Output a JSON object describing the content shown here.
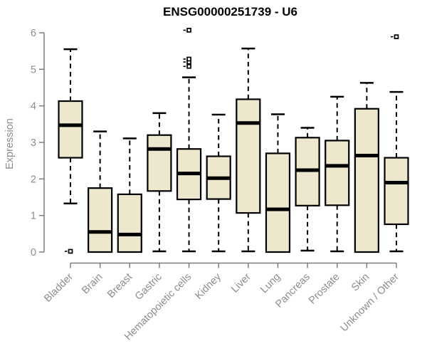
{
  "chart_data": {
    "type": "boxplot",
    "title": "ENSG00000251739 - U6",
    "ylabel": "Expression",
    "xlabel": "",
    "ylim": [
      0,
      6
    ],
    "yticks": [
      0,
      1,
      2,
      3,
      4,
      5,
      6
    ],
    "grid": false,
    "legend": "none",
    "categories": [
      "Bladder",
      "Brain",
      "Breast",
      "Gastric",
      "Hematopoietic cells",
      "Kidney",
      "Liver",
      "Lung",
      "Pancreas",
      "Prostate",
      "Skin",
      "Unknown / Other"
    ],
    "series": [
      {
        "name": "Bladder",
        "whisker_low": 1.33,
        "q1": 2.58,
        "median": 3.47,
        "q3": 4.13,
        "whisker_high": 5.55,
        "outliers": [
          0.02
        ]
      },
      {
        "name": "Brain",
        "whisker_low": 0,
        "q1": 0,
        "median": 0.55,
        "q3": 1.75,
        "whisker_high": 3.3,
        "outliers": []
      },
      {
        "name": "Breast",
        "whisker_low": 0,
        "q1": 0,
        "median": 0.48,
        "q3": 1.58,
        "whisker_high": 3.11,
        "outliers": []
      },
      {
        "name": "Gastric",
        "whisker_low": 0.02,
        "q1": 1.67,
        "median": 2.82,
        "q3": 3.2,
        "whisker_high": 3.8,
        "outliers": []
      },
      {
        "name": "Hematopoietic cells",
        "whisker_low": 0.02,
        "q1": 1.44,
        "median": 2.15,
        "q3": 2.82,
        "whisker_high": 4.78,
        "outliers": [
          5.08,
          5.2,
          5.28,
          6.07
        ]
      },
      {
        "name": "Kidney",
        "whisker_low": 0.02,
        "q1": 1.45,
        "median": 2.02,
        "q3": 2.62,
        "whisker_high": 3.76,
        "outliers": []
      },
      {
        "name": "Liver",
        "whisker_low": 0.02,
        "q1": 1.07,
        "median": 3.53,
        "q3": 4.18,
        "whisker_high": 5.57,
        "outliers": []
      },
      {
        "name": "Lung",
        "whisker_low": 0,
        "q1": 0,
        "median": 1.17,
        "q3": 2.7,
        "whisker_high": 3.77,
        "outliers": []
      },
      {
        "name": "Pancreas",
        "whisker_low": 0.04,
        "q1": 1.27,
        "median": 2.24,
        "q3": 3.13,
        "whisker_high": 3.4,
        "outliers": []
      },
      {
        "name": "Prostate",
        "whisker_low": 0.02,
        "q1": 1.28,
        "median": 2.36,
        "q3": 3.05,
        "whisker_high": 4.25,
        "outliers": []
      },
      {
        "name": "Skin",
        "whisker_low": 0,
        "q1": 0,
        "median": 2.64,
        "q3": 3.92,
        "whisker_high": 4.63,
        "outliers": []
      },
      {
        "name": "Unknown / Other",
        "whisker_low": 0.02,
        "q1": 0.76,
        "median": 1.9,
        "q3": 2.58,
        "whisker_high": 4.38,
        "outliers": [
          5.89
        ]
      }
    ],
    "colors": {
      "box_fill": "#ece7cd",
      "box_border": "#000000",
      "median": "#000000",
      "whisker": "#000000",
      "outlier": "#000000",
      "axis": "#7d7d7d",
      "tick_label": "#8c8c8c",
      "title": "#000000",
      "background": "#ffffff"
    }
  }
}
